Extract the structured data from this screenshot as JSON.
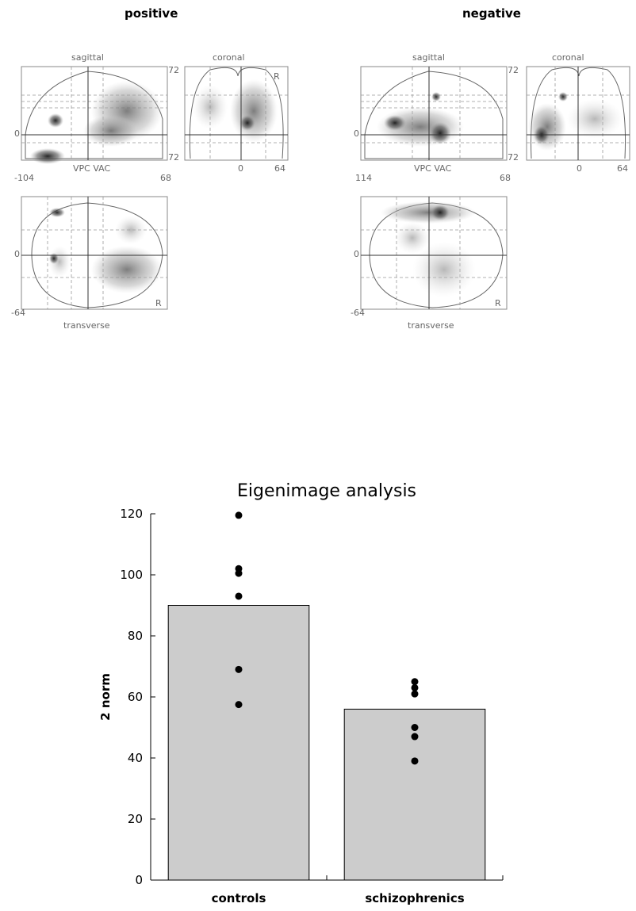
{
  "mip": {
    "positive_title": "positive",
    "negative_title": "negative",
    "panels": {
      "sagittal": "sagittal",
      "coronal": "coronal",
      "transverse": "transverse",
      "orientation_marker": "R",
      "tick_zero": "0",
      "tick_72": "72",
      "tick_neg104": "-104",
      "tick_68": "68",
      "tick_64": "64",
      "tick_neg64": "-64",
      "tick_vac": "VPC VAC",
      "tick_114": "114"
    }
  },
  "chart_data": {
    "type": "bar",
    "title": "Eigenimage analysis",
    "xlabel": "",
    "ylabel": "2 norm",
    "ylim": [
      0,
      120
    ],
    "yticks": [
      0,
      20,
      40,
      60,
      80,
      100,
      120
    ],
    "categories": [
      "controls",
      "schizophrenics"
    ],
    "values": [
      90,
      56
    ],
    "bar_color": "#cccccc",
    "points": [
      {
        "category": "controls",
        "values": [
          119.5,
          102,
          100.5,
          93,
          69,
          57.5
        ]
      },
      {
        "category": "schizophrenics",
        "values": [
          65,
          63,
          61,
          50,
          47,
          39
        ]
      }
    ],
    "grid": false
  }
}
